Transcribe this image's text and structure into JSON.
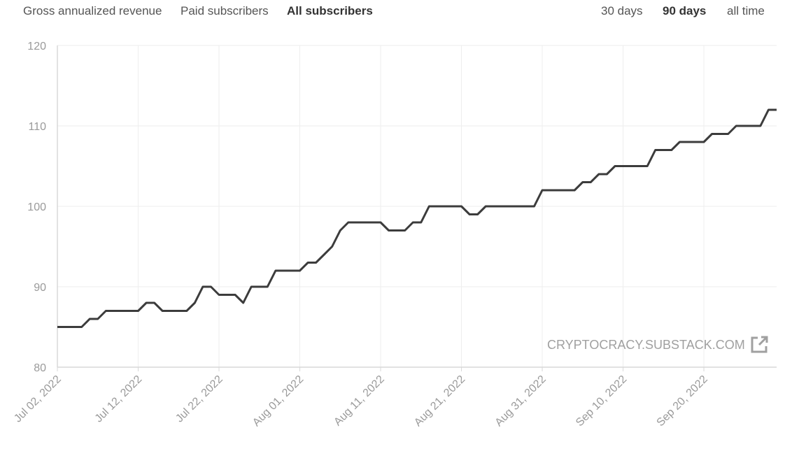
{
  "metric_tabs": [
    {
      "label": "Gross annualized revenue",
      "active": false
    },
    {
      "label": "Paid subscribers",
      "active": false
    },
    {
      "label": "All subscribers",
      "active": true
    }
  ],
  "range_tabs": [
    {
      "label": "30 days",
      "active": false
    },
    {
      "label": "90 days",
      "active": true
    },
    {
      "label": "all time",
      "active": false
    }
  ],
  "watermark": {
    "text": "CRYPTOCRACY.SUBSTACK.COM",
    "icon": "external-link-icon"
  },
  "colors": {
    "line": "#3c3c3c",
    "grid": "#eeeeee",
    "axis": "#d8d8d8",
    "tick": "#9a9a9a"
  },
  "chart_data": {
    "type": "line",
    "title": "",
    "xlabel": "",
    "ylabel": "",
    "ylim": [
      80,
      120
    ],
    "yticks": [
      80,
      90,
      100,
      110,
      120
    ],
    "xlim": [
      "2022-07-02",
      "2022-09-29"
    ],
    "xticks": [
      "Jul 02, 2022",
      "Jul 12, 2022",
      "Jul 22, 2022",
      "Aug 01, 2022",
      "Aug 11, 2022",
      "Aug 21, 2022",
      "Aug 31, 2022",
      "Sep 10, 2022",
      "Sep 20, 2022"
    ],
    "xtick_dates": [
      "2022-07-02",
      "2022-07-12",
      "2022-07-22",
      "2022-08-01",
      "2022-08-11",
      "2022-08-21",
      "2022-08-31",
      "2022-09-10",
      "2022-09-20"
    ],
    "grid": true,
    "series": [
      {
        "name": "",
        "points": [
          [
            "2022-07-02",
            85
          ],
          [
            "2022-07-05",
            85
          ],
          [
            "2022-07-06",
            86
          ],
          [
            "2022-07-07",
            86
          ],
          [
            "2022-07-08",
            87
          ],
          [
            "2022-07-12",
            87
          ],
          [
            "2022-07-13",
            88
          ],
          [
            "2022-07-14",
            88
          ],
          [
            "2022-07-15",
            87
          ],
          [
            "2022-07-18",
            87
          ],
          [
            "2022-07-19",
            88
          ],
          [
            "2022-07-20",
            90
          ],
          [
            "2022-07-21",
            90
          ],
          [
            "2022-07-22",
            89
          ],
          [
            "2022-07-24",
            89
          ],
          [
            "2022-07-25",
            88
          ],
          [
            "2022-07-26",
            90
          ],
          [
            "2022-07-28",
            90
          ],
          [
            "2022-07-29",
            92
          ],
          [
            "2022-08-01",
            92
          ],
          [
            "2022-08-02",
            93
          ],
          [
            "2022-08-03",
            93
          ],
          [
            "2022-08-04",
            94
          ],
          [
            "2022-08-05",
            95
          ],
          [
            "2022-08-06",
            97
          ],
          [
            "2022-08-07",
            98
          ],
          [
            "2022-08-11",
            98
          ],
          [
            "2022-08-12",
            97
          ],
          [
            "2022-08-14",
            97
          ],
          [
            "2022-08-15",
            98
          ],
          [
            "2022-08-16",
            98
          ],
          [
            "2022-08-17",
            100
          ],
          [
            "2022-08-21",
            100
          ],
          [
            "2022-08-22",
            99
          ],
          [
            "2022-08-23",
            99
          ],
          [
            "2022-08-24",
            100
          ],
          [
            "2022-08-30",
            100
          ],
          [
            "2022-08-31",
            102
          ],
          [
            "2022-09-04",
            102
          ],
          [
            "2022-09-05",
            103
          ],
          [
            "2022-09-06",
            103
          ],
          [
            "2022-09-07",
            104
          ],
          [
            "2022-09-08",
            104
          ],
          [
            "2022-09-09",
            105
          ],
          [
            "2022-09-13",
            105
          ],
          [
            "2022-09-14",
            107
          ],
          [
            "2022-09-16",
            107
          ],
          [
            "2022-09-17",
            108
          ],
          [
            "2022-09-20",
            108
          ],
          [
            "2022-09-21",
            109
          ],
          [
            "2022-09-23",
            109
          ],
          [
            "2022-09-24",
            110
          ],
          [
            "2022-09-27",
            110
          ],
          [
            "2022-09-28",
            112
          ],
          [
            "2022-09-29",
            112
          ]
        ]
      }
    ]
  }
}
